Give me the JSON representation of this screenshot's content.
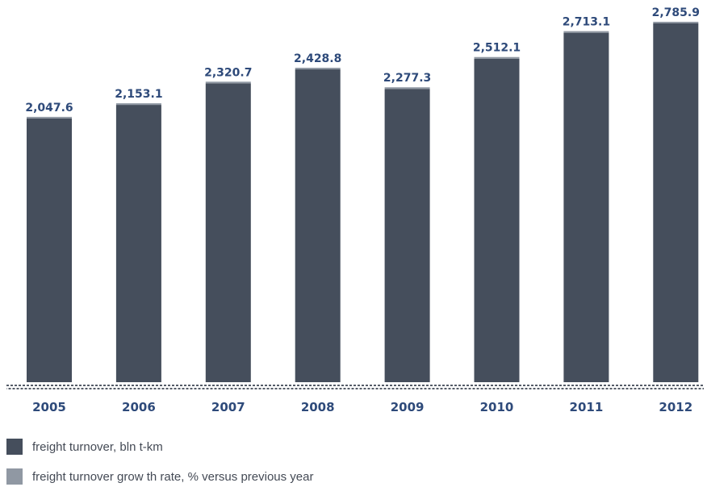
{
  "chart_data": {
    "type": "bar",
    "categories": [
      "2005",
      "2006",
      "2007",
      "2008",
      "2009",
      "2010",
      "2011",
      "2012"
    ],
    "value_labels": [
      "2,047.6",
      "2,153.1",
      "2,320.7",
      "2,428.8",
      "2,277.3",
      "2,512.1",
      "2,713.1",
      "2,785.9"
    ],
    "series": [
      {
        "name": "freight turnover, bln t-km",
        "values": [
          2047.6,
          2153.1,
          2320.7,
          2428.8,
          2277.3,
          2512.1,
          2713.1,
          2785.9
        ],
        "color": "#454e5c"
      },
      {
        "name": "freight turnover growth rate, % versus previous year",
        "values": [
          null,
          null,
          null,
          null,
          null,
          null,
          null,
          null
        ],
        "color": "#9098a3"
      }
    ],
    "ylim": [
      0,
      2785.9
    ],
    "grid": false,
    "legend_position": "bottom-left",
    "label_color": "#2e4a7a"
  },
  "legend": {
    "items": [
      {
        "label": "freight turnover, bln t-km",
        "color": "#454e5c"
      },
      {
        "label": "freight turnover grow th rate, % versus previous year",
        "color": "#9098a3"
      }
    ]
  }
}
